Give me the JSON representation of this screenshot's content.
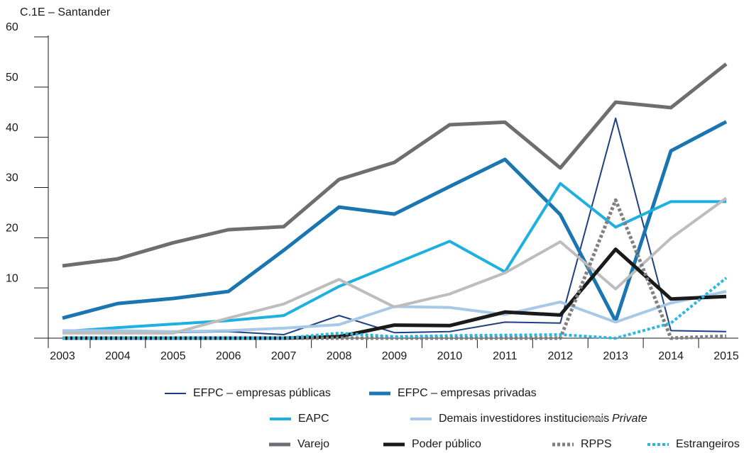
{
  "chart_data": {
    "type": "line",
    "title": "C.1E – Santander",
    "categories": [
      "2003",
      "2004",
      "2005",
      "2006",
      "2007",
      "2008",
      "2009",
      "2010",
      "2011",
      "2012",
      "2013",
      "2014",
      "2015"
    ],
    "ylim": [
      0,
      60
    ],
    "yticks": [
      10,
      20,
      30,
      40,
      50,
      60
    ],
    "series": [
      {
        "name": "EFPC – empresas públicas",
        "color": "#1f3f7f",
        "width": 2,
        "values": [
          1.3,
          1.2,
          1.1,
          1.3,
          0.7,
          4.5,
          1.1,
          1.3,
          3.2,
          3.0,
          43.8,
          1.5,
          1.3
        ]
      },
      {
        "name": "EFPC – empresas privadas",
        "color": "#1b75b0",
        "width": 5,
        "values": [
          4.0,
          6.9,
          7.9,
          9.3,
          17.5,
          26.1,
          24.7,
          30.2,
          35.6,
          24.6,
          3.4,
          37.3,
          43.1
        ]
      },
      {
        "name": "EAPC",
        "color": "#1eb0df",
        "width": 4,
        "values": [
          1.3,
          2.1,
          2.8,
          3.5,
          4.5,
          10.3,
          14.8,
          19.3,
          13.2,
          30.8,
          22.1,
          27.2,
          27.2
        ]
      },
      {
        "name": "Demais investidores institucionais",
        "color": "#a8c8e8",
        "width": 4,
        "values": [
          1.5,
          1.5,
          1.3,
          1.5,
          2.0,
          2.7,
          6.3,
          6.1,
          4.7,
          7.2,
          3.2,
          7.0,
          9.3
        ]
      },
      {
        "name": "Private",
        "color": "#bdbdbd",
        "width": 4,
        "font_style": "italic",
        "values": [
          1.0,
          1.0,
          1.0,
          4.0,
          6.8,
          11.7,
          6.2,
          8.8,
          13.0,
          19.2,
          9.8,
          19.9,
          27.9
        ]
      },
      {
        "name": "Varejo",
        "color": "#6d6d72",
        "width": 5,
        "values": [
          14.4,
          15.8,
          19.0,
          21.6,
          22.2,
          31.6,
          35.0,
          42.5,
          43.0,
          33.9,
          47.0,
          45.9,
          54.6
        ]
      },
      {
        "name": "Poder público",
        "color": "#1a1a1a",
        "width": 5,
        "values": [
          0,
          0,
          0,
          0,
          0,
          0.3,
          2.6,
          2.5,
          5.2,
          4.6,
          17.7,
          7.8,
          8.3
        ]
      },
      {
        "name": "RPPS",
        "color": "#808080",
        "width": 5,
        "dash": "dotted",
        "values": [
          0,
          0,
          0,
          0,
          0,
          0,
          0,
          0,
          0,
          0,
          27.5,
          0,
          0.4
        ]
      },
      {
        "name": "Estrangeiros",
        "color": "#2bb6e3",
        "width": 4,
        "dash": "dotted",
        "values": [
          0,
          0,
          0,
          0,
          0,
          1.0,
          0.3,
          0.5,
          0.6,
          0.7,
          0,
          3.0,
          12.0
        ]
      }
    ]
  }
}
